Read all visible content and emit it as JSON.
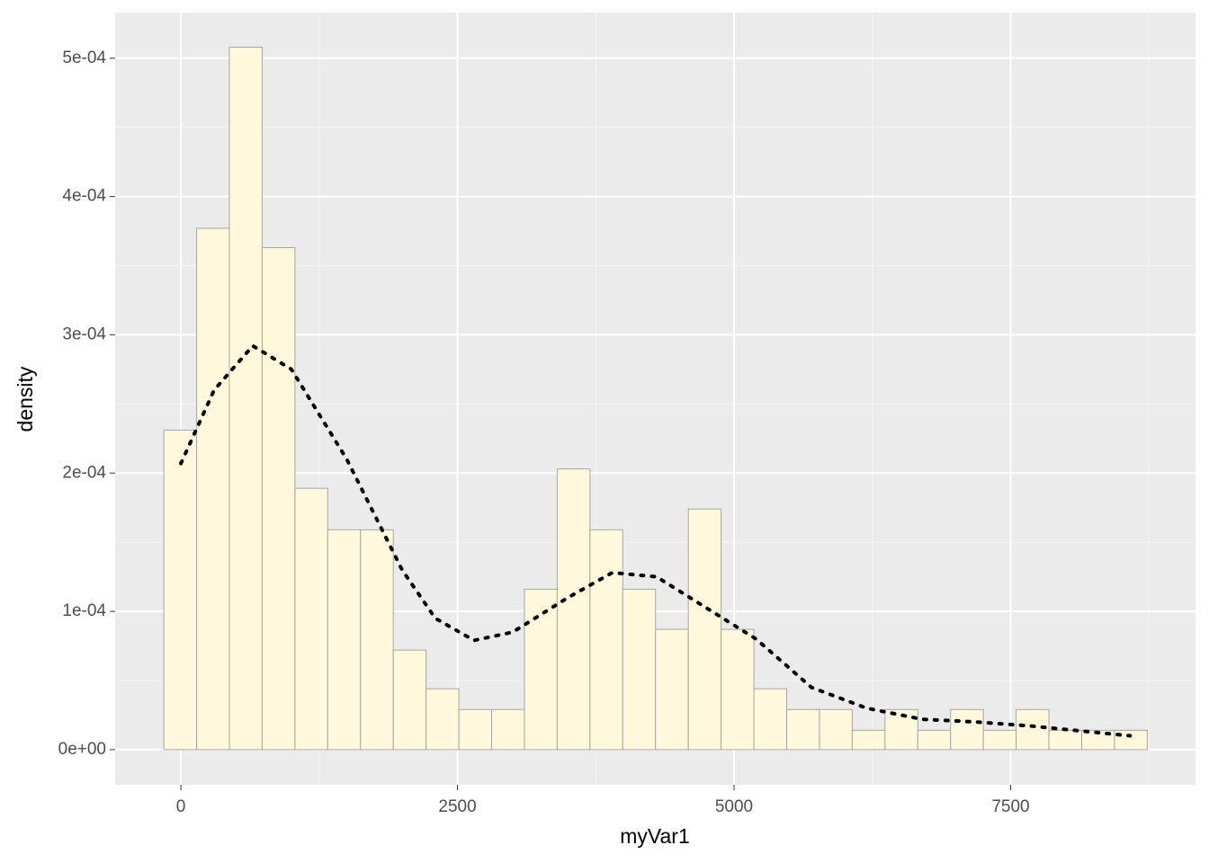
{
  "chart_data": {
    "type": "histogram",
    "x_label": "myVar1",
    "y_label": "density",
    "bins": [
      -154,
      142.3,
      438.6,
      734.9,
      1031.2,
      1327.5,
      1623.8,
      1920.1,
      2216.4,
      2512.7,
      2809,
      3105.3,
      3401.6,
      3697.9,
      3994.2,
      4290.5,
      4586.8,
      4883.1,
      5179.4,
      5475.7,
      5772,
      6068.3,
      6364.6,
      6660.9,
      6957.2,
      7253.5,
      7549.8,
      7846.1,
      8142.4,
      8438.7,
      8735
    ],
    "values": [
      0.000231,
      0.000377,
      0.000508,
      0.000363,
      0.000189,
      0.000159,
      0.000159,
      7.2e-05,
      4.4e-05,
      2.9e-05,
      2.9e-05,
      0.000116,
      0.000203,
      0.000159,
      0.000116,
      8.7e-05,
      0.000174,
      8.7e-05,
      4.4e-05,
      2.9e-05,
      2.9e-05,
      1.4e-05,
      2.9e-05,
      1.4e-05,
      2.9e-05,
      1.4e-05,
      2.9e-05,
      1.4e-05,
      1.4e-05,
      1.4e-05
    ],
    "color": "#fff8dc",
    "edge_color": "#a6a6a6",
    "density_line": {
      "x": [
        0,
        300,
        650,
        1000,
        1500,
        2000,
        2300,
        2650,
        3000,
        3500,
        3900,
        4300,
        4800,
        5200,
        5700,
        6200,
        6700,
        7200,
        7700,
        8200,
        8580
      ],
      "values": [
        0.000207,
        0.00026,
        0.000292,
        0.000275,
        0.00021,
        0.00013,
        9.5e-05,
        7.9e-05,
        8.5e-05,
        0.00011,
        0.000128,
        0.000125,
        0.0001,
        8e-05,
        4.5e-05,
        3e-05,
        2.2e-05,
        2e-05,
        1.7e-05,
        1.3e-05,
        1e-05
      ],
      "color": "#000000"
    },
    "xlim": [
      -594,
      9171
    ],
    "xticks": [
      0,
      2500,
      5000,
      7500
    ],
    "xminor": [
      1250,
      3750,
      6250,
      8750
    ],
    "ylim": [
      -2.54e-05,
      0.000533
    ],
    "yticks": [
      {
        "value": 0,
        "label": "0e+00"
      },
      {
        "value": 0.0001,
        "label": "1e-04"
      },
      {
        "value": 0.0002,
        "label": "2e-04"
      },
      {
        "value": 0.0003,
        "label": "3e-04"
      },
      {
        "value": 0.0004,
        "label": "4e-04"
      },
      {
        "value": 0.0005,
        "label": "5e-04"
      }
    ],
    "yminor": [
      5e-05,
      0.00015,
      0.00025,
      0.00035,
      0.00045
    ],
    "grid": true
  }
}
